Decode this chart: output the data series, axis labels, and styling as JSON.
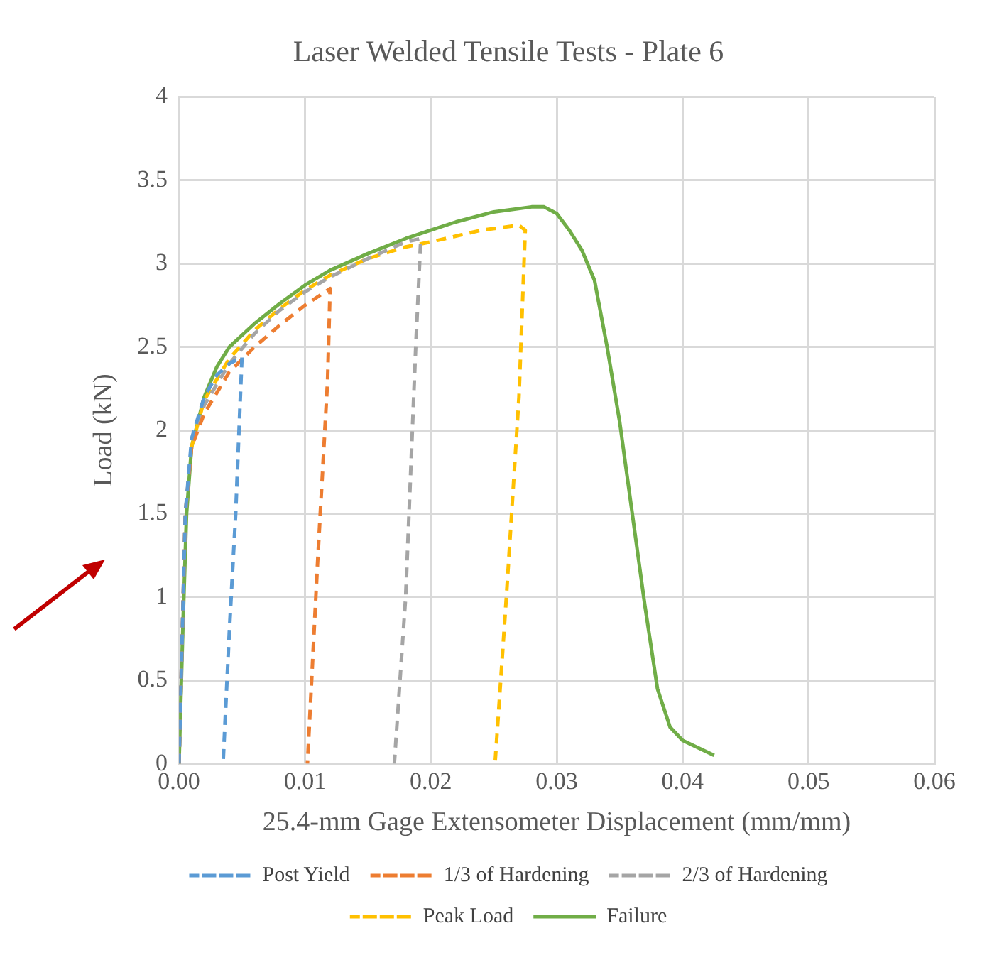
{
  "chart_data": {
    "type": "line",
    "title": "Laser Welded Tensile Tests - Plate 6",
    "xlabel": "25.4-mm Gage Extensometer Displacement (mm/mm)",
    "ylabel": "Load (kN)",
    "xlim": [
      0,
      0.06
    ],
    "xticks": [
      {
        "value": 0,
        "label": "0.00"
      },
      {
        "value": 0.01,
        "label": "0.01"
      },
      {
        "value": 0.02,
        "label": "0.02"
      },
      {
        "value": 0.03,
        "label": "0.03"
      },
      {
        "value": 0.04,
        "label": "0.04"
      },
      {
        "value": 0.05,
        "label": "0.05"
      },
      {
        "value": 0.06,
        "label": "0.06"
      }
    ],
    "ylim": [
      0,
      4
    ],
    "yticks": [
      0,
      0.5,
      1,
      1.5,
      2,
      2.5,
      3,
      3.5,
      4
    ],
    "grid": true,
    "legend": "bottom",
    "marker": "none",
    "series": [
      {
        "name": "Post Yield",
        "color": "#5b9bd5",
        "line_style": "dashed",
        "x": [
          0,
          0.0005,
          0.001,
          0.002,
          0.003,
          0.004,
          0.005,
          0.0045,
          0.004,
          0.0035
        ],
        "values": [
          0,
          1.5,
          1.95,
          2.2,
          2.33,
          2.4,
          2.44,
          1.5,
          0.8,
          0
        ]
      },
      {
        "name": "1/3 of Hardening",
        "color": "#ed7d31",
        "line_style": "dashed",
        "x": [
          0,
          0.0005,
          0.001,
          0.002,
          0.004,
          0.006,
          0.008,
          0.01,
          0.012,
          0.0118,
          0.011,
          0.0102
        ],
        "values": [
          0,
          1.5,
          1.9,
          2.1,
          2.35,
          2.5,
          2.63,
          2.75,
          2.85,
          2.3,
          1.2,
          0
        ]
      },
      {
        "name": "2/3 of Hardening",
        "color": "#a5a5a5",
        "line_style": "dashed",
        "x": [
          0,
          0.0005,
          0.001,
          0.002,
          0.004,
          0.006,
          0.008,
          0.01,
          0.012,
          0.015,
          0.018,
          0.0192,
          0.0188,
          0.018,
          0.0171
        ],
        "values": [
          0,
          1.5,
          1.9,
          2.15,
          2.4,
          2.58,
          2.72,
          2.83,
          2.92,
          3.03,
          3.13,
          3.15,
          2.5,
          1.0,
          0
        ]
      },
      {
        "name": "Peak Load",
        "color": "#ffc000",
        "line_style": "dashed",
        "x": [
          0.001,
          0.002,
          0.004,
          0.006,
          0.008,
          0.01,
          0.012,
          0.015,
          0.018,
          0.02,
          0.024,
          0.027,
          0.0275,
          0.027,
          0.026,
          0.0251
        ],
        "values": [
          1.9,
          2.18,
          2.43,
          2.6,
          2.73,
          2.84,
          2.93,
          3.03,
          3.1,
          3.13,
          3.2,
          3.23,
          3.2,
          2.2,
          1.0,
          0
        ]
      },
      {
        "name": "Failure",
        "color": "#70ad47",
        "line_style": "solid",
        "x": [
          0,
          0.0003,
          0.0006,
          0.001,
          0.002,
          0.003,
          0.004,
          0.006,
          0.008,
          0.01,
          0.012,
          0.015,
          0.018,
          0.02,
          0.022,
          0.025,
          0.028,
          0.029,
          0.03,
          0.031,
          0.032,
          0.033,
          0.034,
          0.035,
          0.036,
          0.037,
          0.038,
          0.039,
          0.04,
          0.0425
        ],
        "values": [
          0,
          0.8,
          1.5,
          1.9,
          2.2,
          2.38,
          2.5,
          2.64,
          2.76,
          2.87,
          2.96,
          3.06,
          3.15,
          3.2,
          3.25,
          3.31,
          3.34,
          3.34,
          3.3,
          3.2,
          3.08,
          2.9,
          2.5,
          2.05,
          1.5,
          0.95,
          0.45,
          0.22,
          0.14,
          0.05
        ]
      }
    ]
  }
}
